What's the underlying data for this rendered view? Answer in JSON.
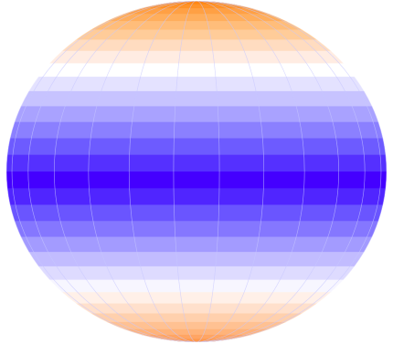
{
  "sphere": {
    "bands": [
      "#ff7a00",
      "#ff8614",
      "#ff9329",
      "#ffa044",
      "#ffae5c",
      "#ffbd7a",
      "#ffcc99",
      "#ffdcc0",
      "#ffece2",
      "#ffffff",
      "#e4e2ff",
      "#c7c3ff",
      "#a9a2ff",
      "#8b80ff",
      "#6d5bff",
      "#5530ff",
      "#4400ff",
      "#5025ff",
      "#6a55ff",
      "#8577ff",
      "#a39bff",
      "#c2bcff",
      "#dedbff",
      "#f7f6ff",
      "#fff0e8",
      "#ffe0cc",
      "#ffd0ad",
      "#ffc192",
      "#ffb37a",
      "#ffa564",
      "#ff984d",
      "#ff8c38"
    ],
    "meridians": 13,
    "gridline_color": "#c8c8ff"
  }
}
